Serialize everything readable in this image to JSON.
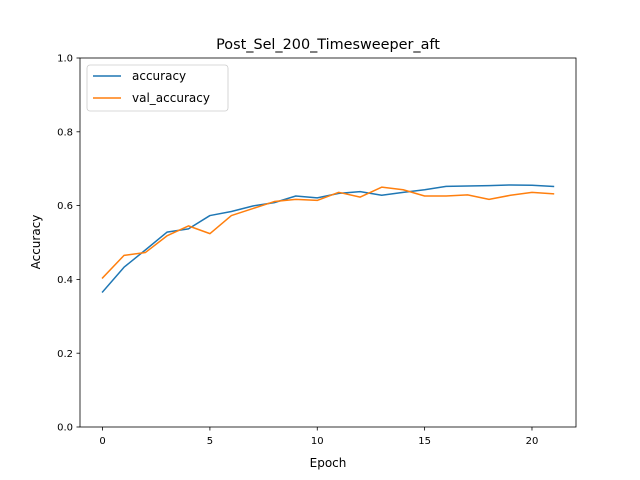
{
  "chart_data": {
    "type": "line",
    "title": "Post_Sel_200_Timesweeper_aft",
    "xlabel": "Epoch",
    "ylabel": "Accuracy",
    "xlim": [
      -1.05,
      22.05
    ],
    "ylim": [
      0.0,
      1.0
    ],
    "xticks": [
      0,
      5,
      10,
      15,
      20
    ],
    "yticks": [
      0.0,
      0.2,
      0.4,
      0.6,
      0.8,
      1.0
    ],
    "xtick_labels": [
      "0",
      "5",
      "10",
      "15",
      "20"
    ],
    "ytick_labels": [
      "0.0",
      "0.2",
      "0.4",
      "0.6",
      "0.8",
      "1.0"
    ],
    "grid": false,
    "legend_position": "top-left",
    "x": [
      0,
      1,
      2,
      3,
      4,
      5,
      6,
      7,
      8,
      9,
      10,
      11,
      12,
      13,
      14,
      15,
      16,
      17,
      18,
      19,
      20,
      21
    ],
    "series": [
      {
        "name": "accuracy",
        "color": "#1f77b4",
        "values": [
          0.366,
          0.433,
          0.48,
          0.528,
          0.537,
          0.573,
          0.584,
          0.599,
          0.608,
          0.626,
          0.621,
          0.633,
          0.638,
          0.628,
          0.636,
          0.643,
          0.652,
          0.653,
          0.654,
          0.656,
          0.655,
          0.652
        ]
      },
      {
        "name": "val_accuracy",
        "color": "#ff7f0e",
        "values": [
          0.404,
          0.465,
          0.473,
          0.518,
          0.545,
          0.524,
          0.573,
          0.592,
          0.611,
          0.617,
          0.614,
          0.636,
          0.623,
          0.65,
          0.643,
          0.626,
          0.626,
          0.629,
          0.617,
          0.628,
          0.636,
          0.632
        ]
      }
    ]
  }
}
